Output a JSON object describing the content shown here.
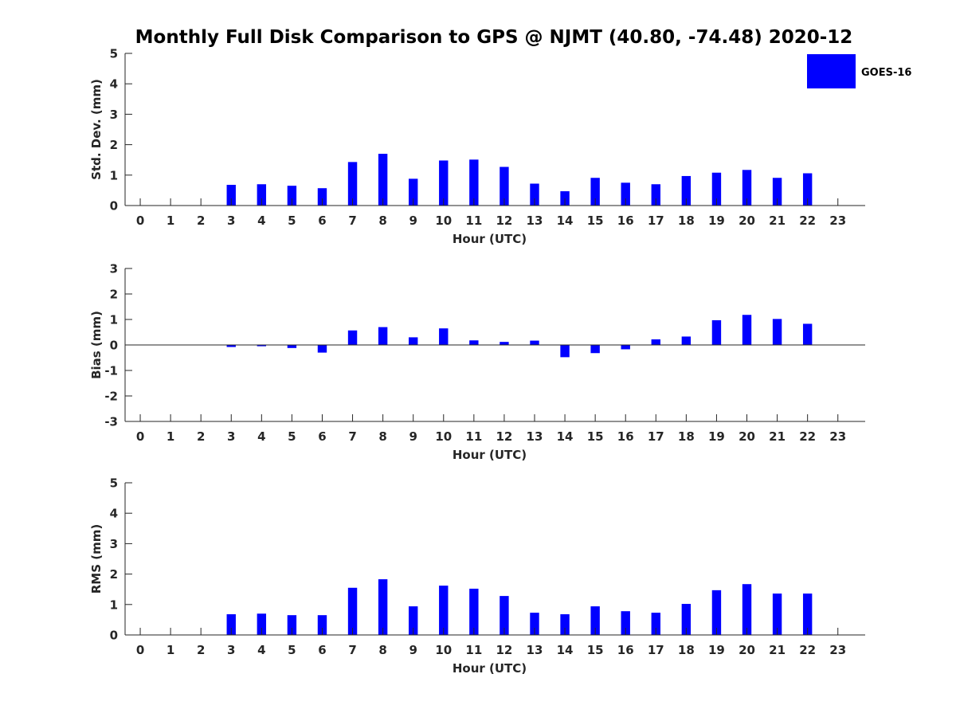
{
  "figure": {
    "title": "Monthly Full Disk Comparison to GPS @ NJMT (40.80, -74.48) 2020-12"
  },
  "legend": {
    "label": "GOES-16",
    "color": "#0000ff",
    "placement": "top-right"
  },
  "chart_data": [
    {
      "type": "bar",
      "series_name": "GOES-16",
      "xlabel": "Hour (UTC)",
      "ylabel": "Std. Dev. (mm)",
      "x": [
        0,
        1,
        2,
        3,
        4,
        5,
        6,
        7,
        8,
        9,
        10,
        11,
        12,
        13,
        14,
        15,
        16,
        17,
        18,
        19,
        20,
        21,
        22,
        23
      ],
      "values": [
        null,
        null,
        null,
        0.68,
        0.7,
        0.65,
        0.57,
        1.43,
        1.7,
        0.88,
        1.48,
        1.51,
        1.27,
        0.72,
        0.47,
        0.91,
        0.75,
        0.7,
        0.97,
        1.08,
        1.17,
        0.91,
        1.06,
        null
      ],
      "ylim": [
        0,
        5
      ],
      "yticks": [
        0,
        1,
        2,
        3,
        4,
        5
      ],
      "xlim": [
        -0.5,
        23.9
      ],
      "grid": false
    },
    {
      "type": "bar",
      "series_name": "GOES-16",
      "xlabel": "Hour (UTC)",
      "ylabel": "Bias (mm)",
      "x": [
        0,
        1,
        2,
        3,
        4,
        5,
        6,
        7,
        8,
        9,
        10,
        11,
        12,
        13,
        14,
        15,
        16,
        17,
        18,
        19,
        20,
        21,
        22,
        23
      ],
      "values": [
        null,
        null,
        null,
        -0.08,
        -0.05,
        -0.12,
        -0.3,
        0.57,
        0.7,
        0.3,
        0.65,
        0.18,
        0.12,
        0.17,
        -0.48,
        -0.32,
        -0.17,
        0.22,
        0.33,
        0.97,
        1.18,
        1.02,
        0.83,
        null
      ],
      "ylim": [
        -3,
        3
      ],
      "yticks": [
        -3,
        -2,
        -1,
        0,
        1,
        2,
        3
      ],
      "xlim": [
        -0.5,
        23.9
      ],
      "zero_line": true,
      "grid": false
    },
    {
      "type": "bar",
      "series_name": "GOES-16",
      "xlabel": "Hour (UTC)",
      "ylabel": "RMS (mm)",
      "x": [
        0,
        1,
        2,
        3,
        4,
        5,
        6,
        7,
        8,
        9,
        10,
        11,
        12,
        13,
        14,
        15,
        16,
        17,
        18,
        19,
        20,
        21,
        22,
        23
      ],
      "values": [
        null,
        null,
        null,
        0.68,
        0.7,
        0.65,
        0.65,
        1.55,
        1.83,
        0.94,
        1.62,
        1.52,
        1.28,
        0.73,
        0.68,
        0.94,
        0.78,
        0.73,
        1.02,
        1.47,
        1.67,
        1.36,
        1.36,
        null
      ],
      "ylim": [
        0,
        5
      ],
      "yticks": [
        0,
        1,
        2,
        3,
        4,
        5
      ],
      "xlim": [
        -0.5,
        23.9
      ],
      "grid": false
    }
  ]
}
